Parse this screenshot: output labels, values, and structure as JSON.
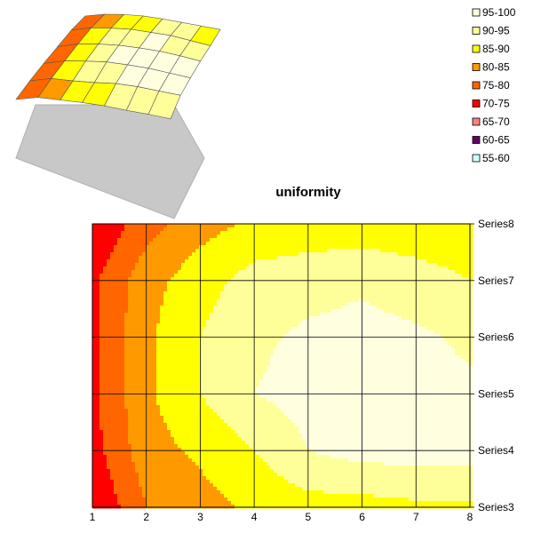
{
  "chart_data": {
    "type": "contour",
    "title": "uniformity",
    "x_ticks": [
      "1",
      "2",
      "3",
      "4",
      "5",
      "6",
      "7",
      "8"
    ],
    "series": [
      "Series3",
      "Series4",
      "Series5",
      "Series6",
      "Series7",
      "Series8"
    ],
    "z_grid": [
      [
        70,
        80,
        83,
        86,
        88,
        88,
        89,
        89
      ],
      [
        73,
        83,
        86,
        90,
        95,
        97,
        97,
        97
      ],
      [
        74,
        84,
        90,
        95,
        97,
        98,
        97,
        96
      ],
      [
        74,
        84,
        90,
        94,
        96,
        97,
        96,
        94
      ],
      [
        74,
        83,
        88,
        92,
        93,
        94,
        92,
        90
      ],
      [
        70,
        78,
        83,
        86,
        87,
        87,
        87,
        87
      ]
    ],
    "legend": [
      {
        "label": "95-100",
        "min": 95,
        "max": 100,
        "color": "#FFFFE0"
      },
      {
        "label": "90-95",
        "min": 90,
        "max": 95,
        "color": "#FFFF99"
      },
      {
        "label": "85-90",
        "min": 85,
        "max": 90,
        "color": "#FFFF00"
      },
      {
        "label": "80-85",
        "min": 80,
        "max": 85,
        "color": "#FF9900"
      },
      {
        "label": "75-80",
        "min": 75,
        "max": 80,
        "color": "#FF6600"
      },
      {
        "label": "70-75",
        "min": 70,
        "max": 75,
        "color": "#FF0000"
      },
      {
        "label": "65-70",
        "min": 65,
        "max": 70,
        "color": "#FF8080"
      },
      {
        "label": "60-65",
        "min": 60,
        "max": 65,
        "color": "#660066"
      },
      {
        "label": "55-60",
        "min": 55,
        "max": 60,
        "color": "#CCFFFF"
      }
    ],
    "legend_placement": "top-right",
    "grid": true
  }
}
